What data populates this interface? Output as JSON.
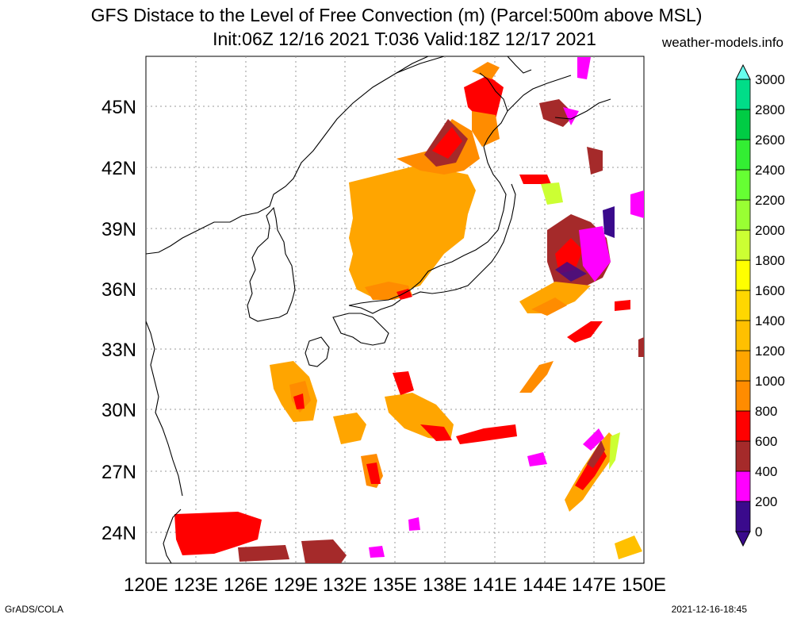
{
  "header": {
    "title_line1": "GFS Distace to the Level of Free Convection (m) (Parcel:500m above MSL)",
    "title_line2": "Init:06Z 12/16 2021 T:036 Valid:18Z 12/17 2021",
    "credit": "weather-models.info"
  },
  "footer": {
    "left": "GrADS/COLA",
    "right": "2021-12-16-18:45"
  },
  "map": {
    "lat_labels": [
      "45N",
      "42N",
      "39N",
      "36N",
      "33N",
      "30N",
      "27N",
      "24N"
    ],
    "lon_labels": [
      "120E",
      "123E",
      "126E",
      "129E",
      "132E",
      "135E",
      "138E",
      "141E",
      "144E",
      "147E",
      "150E"
    ]
  },
  "colorbar": {
    "levels": [
      "0",
      "200",
      "400",
      "600",
      "800",
      "1000",
      "1200",
      "1400",
      "1600",
      "1800",
      "2000",
      "2200",
      "2400",
      "2600",
      "2800",
      "3000"
    ],
    "colors": [
      "#3a0a8c",
      "#ff00ff",
      "#a52a2a",
      "#ff0000",
      "#ff8c00",
      "#ffa500",
      "#ffc000",
      "#ffd700",
      "#ffff00",
      "#ccff33",
      "#99ff33",
      "#66ff33",
      "#33ee33",
      "#00cc44",
      "#00dd88",
      "#00eecc"
    ],
    "min_color": "#3a0a8c",
    "max_color": "#66ffee"
  }
}
